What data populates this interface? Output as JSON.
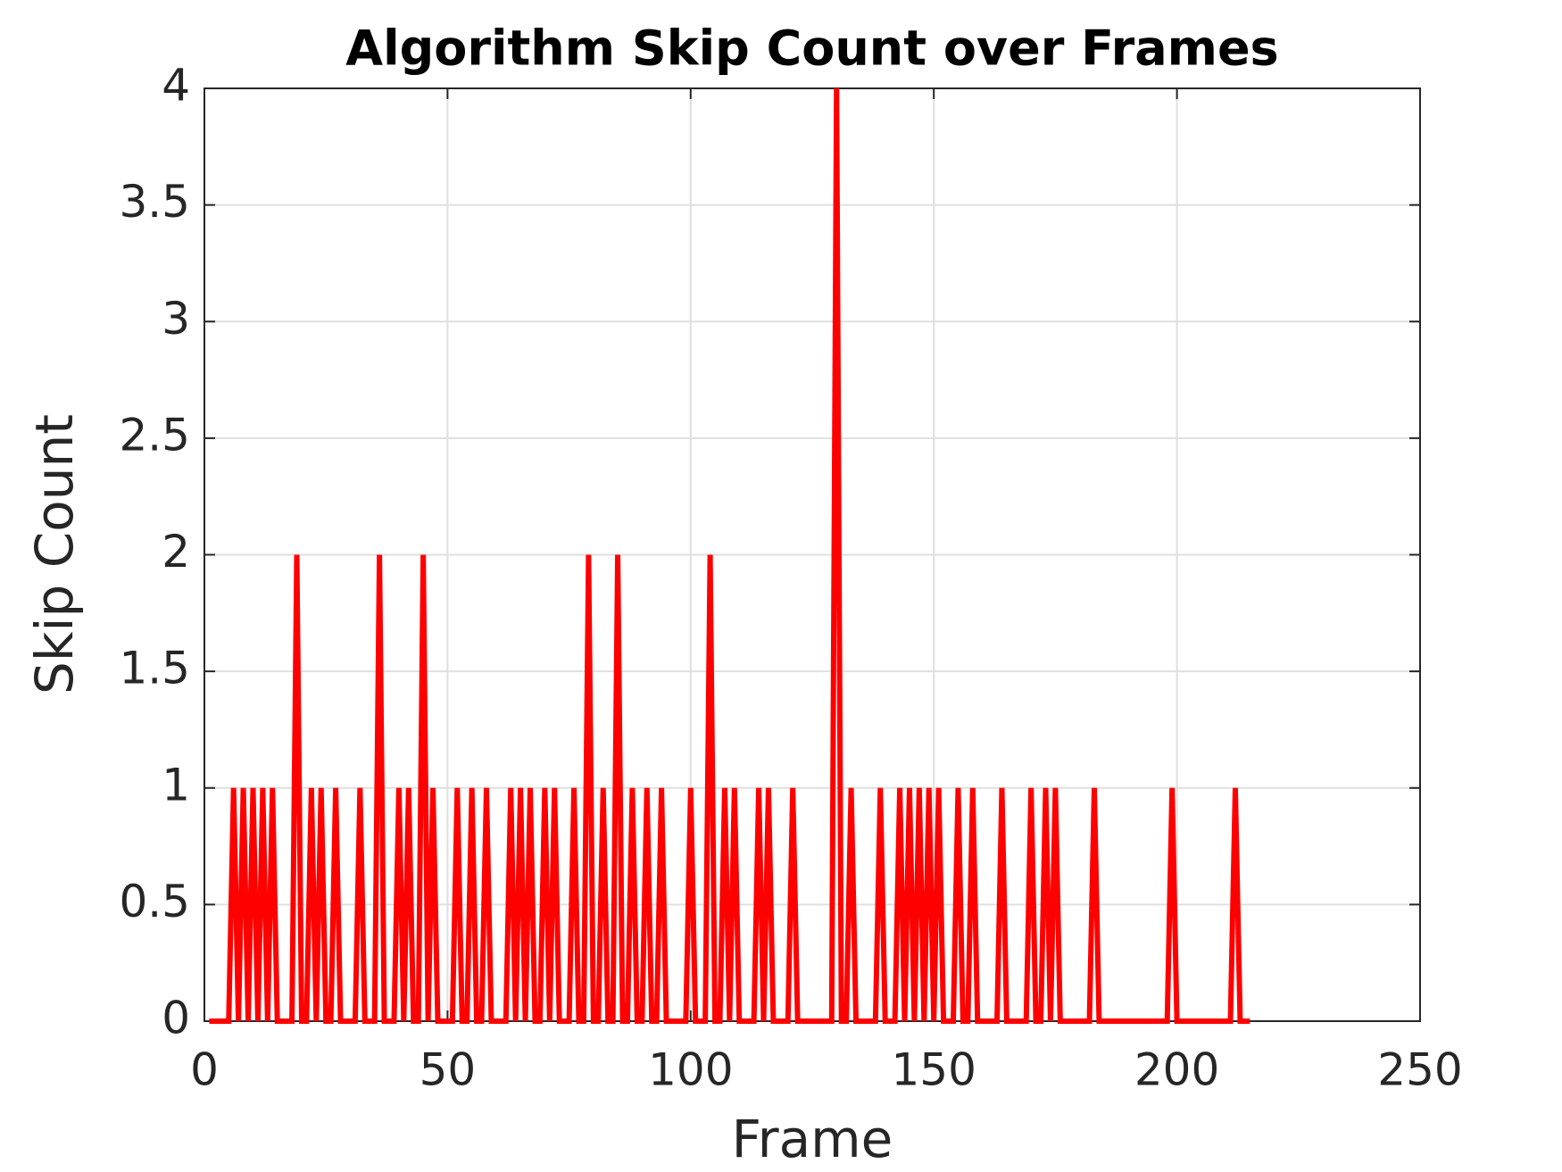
{
  "chart_data": {
    "type": "line",
    "title": "Algorithm Skip Count over Frames",
    "x_label": "Frame",
    "y_label": "Skip Count",
    "x": [
      1,
      2,
      3,
      4,
      5,
      6,
      7,
      8,
      9,
      10,
      11,
      12,
      13,
      14,
      15,
      16,
      17,
      18,
      19,
      20,
      21,
      22,
      23,
      24,
      25,
      26,
      27,
      28,
      29,
      30,
      31,
      32,
      33,
      34,
      35,
      36,
      37,
      38,
      39,
      40,
      41,
      42,
      43,
      44,
      45,
      46,
      47,
      48,
      49,
      50,
      51,
      52,
      53,
      54,
      55,
      56,
      57,
      58,
      59,
      60,
      61,
      62,
      63,
      64,
      65,
      66,
      67,
      68,
      69,
      70,
      71,
      72,
      73,
      74,
      75,
      76,
      77,
      78,
      79,
      80,
      81,
      82,
      83,
      84,
      85,
      86,
      87,
      88,
      89,
      90,
      91,
      92,
      93,
      94,
      95,
      96,
      97,
      98,
      99,
      100,
      101,
      102,
      103,
      104,
      105,
      106,
      107,
      108,
      109,
      110,
      111,
      112,
      113,
      114,
      115,
      116,
      117,
      118,
      119,
      120,
      121,
      122,
      123,
      124,
      125,
      126,
      127,
      128,
      129,
      130,
      131,
      132,
      133,
      134,
      135,
      136,
      137,
      138,
      139,
      140,
      141,
      142,
      143,
      144,
      145,
      146,
      147,
      148,
      149,
      150,
      151,
      152,
      153,
      154,
      155,
      156,
      157,
      158,
      159,
      160,
      161,
      162,
      163,
      164,
      165,
      166,
      167,
      168,
      169,
      170,
      171,
      172,
      173,
      174,
      175,
      176,
      177,
      178,
      179,
      180,
      181,
      182,
      183,
      184,
      185,
      186,
      187,
      188,
      189,
      190,
      191,
      192,
      193,
      194,
      195,
      196,
      197,
      198,
      199,
      200,
      201,
      202,
      203,
      204,
      205,
      206,
      207,
      208,
      209,
      210,
      211,
      212,
      213,
      214,
      215
    ],
    "series": [
      {
        "color": "#ff0000",
        "values": [
          0,
          0,
          0,
          0,
          0,
          1,
          0,
          1,
          0,
          1,
          0,
          1,
          0,
          1,
          0,
          0,
          0,
          0,
          2,
          0,
          0,
          1,
          0,
          1,
          0,
          0,
          1,
          0,
          0,
          0,
          0,
          1,
          0,
          0,
          0,
          2,
          0,
          0,
          0,
          1,
          0,
          1,
          0,
          0,
          2,
          0,
          1,
          0,
          0,
          0,
          0,
          1,
          0,
          0,
          1,
          0,
          0,
          1,
          0,
          0,
          0,
          0,
          1,
          0,
          1,
          0,
          1,
          0,
          0,
          1,
          0,
          1,
          0,
          0,
          0,
          1,
          0,
          0,
          2,
          0,
          0,
          1,
          0,
          0,
          2,
          0,
          0,
          1,
          0,
          0,
          1,
          0,
          0,
          1,
          0,
          0,
          0,
          0,
          0,
          1,
          0,
          0,
          0,
          2,
          0,
          0,
          1,
          0,
          1,
          0,
          0,
          0,
          0,
          1,
          0,
          1,
          0,
          0,
          0,
          0,
          1,
          0,
          0,
          0,
          0,
          0,
          0,
          0,
          0,
          4,
          0,
          0,
          1,
          0,
          0,
          0,
          0,
          0,
          1,
          0,
          0,
          0,
          1,
          0,
          1,
          0,
          1,
          0,
          1,
          0,
          1,
          0,
          0,
          0,
          1,
          0,
          0,
          1,
          0,
          0,
          0,
          0,
          0,
          1,
          0,
          0,
          0,
          0,
          0,
          1,
          0,
          0,
          1,
          0,
          1,
          0,
          0,
          0,
          0,
          0,
          0,
          0,
          1,
          0,
          0,
          0,
          0,
          0,
          0,
          0,
          0,
          0,
          0,
          0,
          0,
          0,
          0,
          0,
          1,
          0,
          0,
          0,
          0,
          0,
          0,
          0,
          0,
          0,
          0,
          0,
          0,
          1,
          0,
          0,
          0
        ]
      }
    ],
    "xlim": [
      0,
      250
    ],
    "xticks": [
      0,
      50,
      100,
      150,
      200,
      250
    ],
    "ylim": [
      0,
      4
    ],
    "yticks": [
      0,
      0.5,
      1,
      1.5,
      2,
      2.5,
      3,
      3.5,
      4
    ],
    "grid": true
  }
}
